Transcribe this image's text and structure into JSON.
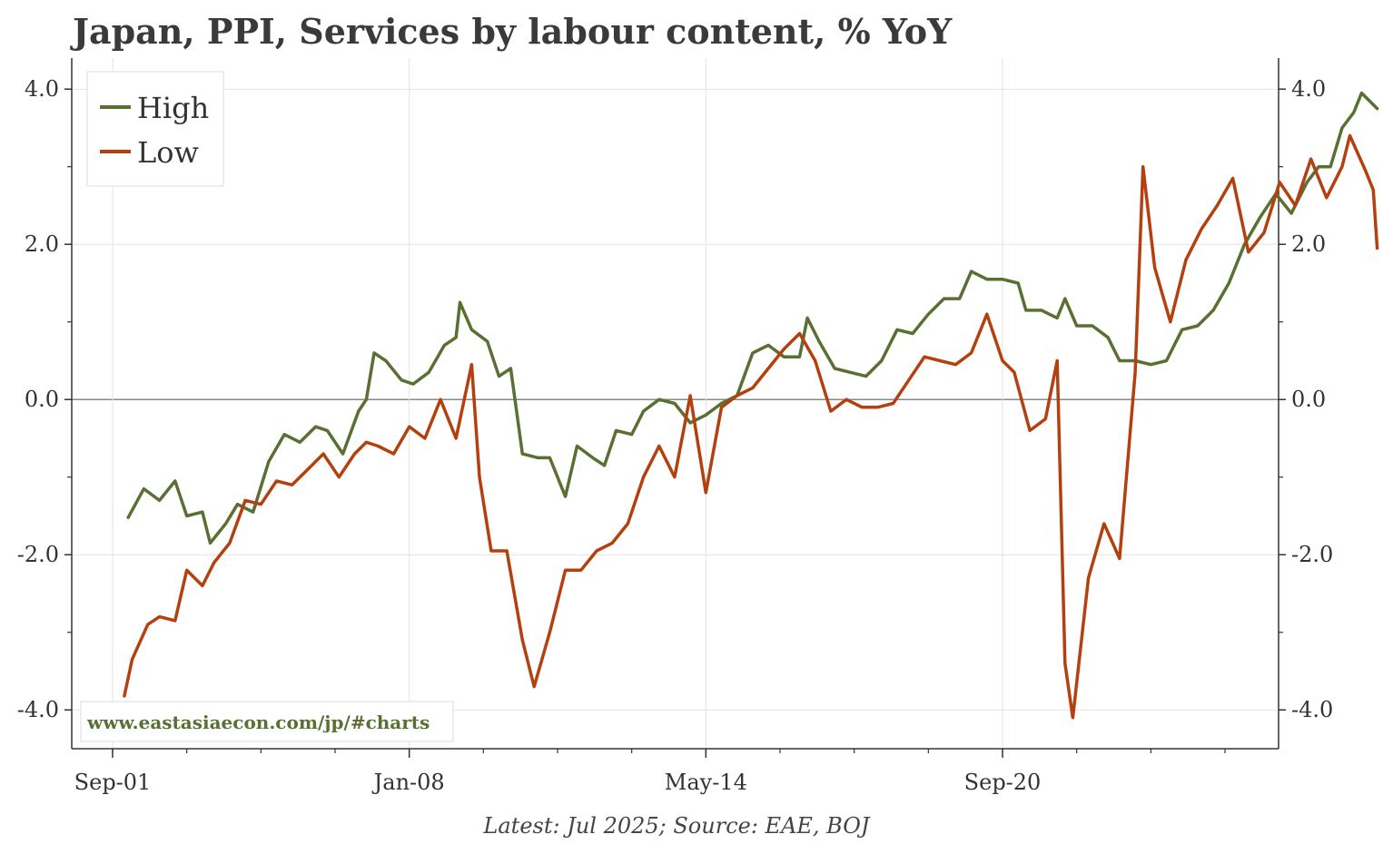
{
  "chart_data": {
    "type": "line",
    "title": "Japan, PPI, Services by labour content, % YoY",
    "footer": "Latest: Jul 2025; Source: EAE, BOJ",
    "watermark": "www.eastasiaecon.com/jp/#charts",
    "x_ticks": [
      "Sep-01",
      "Jan-08",
      "May-14",
      "Sep-20"
    ],
    "y_ticks": [
      "4.0",
      "2.0",
      "0.0",
      "-2.0",
      "-4.0"
    ],
    "ylim": [
      -4.5,
      4.4
    ],
    "legend_position": "top-left",
    "grid": true,
    "colors": {
      "High": "#5a6f32",
      "Low": "#b5400f",
      "watermark": "#5a6f32"
    },
    "series": [
      {
        "name": "High",
        "points": [
          [
            "2002-01",
            -1.52
          ],
          [
            "2002-05",
            -1.15
          ],
          [
            "2002-09",
            -1.3
          ],
          [
            "2003-01",
            -1.05
          ],
          [
            "2003-04",
            -1.5
          ],
          [
            "2003-08",
            -1.45
          ],
          [
            "2003-10",
            -1.85
          ],
          [
            "2004-02",
            -1.6
          ],
          [
            "2004-05",
            -1.35
          ],
          [
            "2004-09",
            -1.45
          ],
          [
            "2005-01",
            -0.8
          ],
          [
            "2005-05",
            -0.45
          ],
          [
            "2005-09",
            -0.55
          ],
          [
            "2006-01",
            -0.35
          ],
          [
            "2006-04",
            -0.4
          ],
          [
            "2006-08",
            -0.7
          ],
          [
            "2006-12",
            -0.15
          ],
          [
            "2007-02",
            0.0
          ],
          [
            "2007-04",
            0.6
          ],
          [
            "2007-07",
            0.5
          ],
          [
            "2007-11",
            0.25
          ],
          [
            "2008-02",
            0.2
          ],
          [
            "2008-06",
            0.35
          ],
          [
            "2008-10",
            0.7
          ],
          [
            "2009-01",
            0.8
          ],
          [
            "2009-02",
            1.25
          ],
          [
            "2009-05",
            0.9
          ],
          [
            "2009-09",
            0.75
          ],
          [
            "2009-12",
            0.3
          ],
          [
            "2010-03",
            0.4
          ],
          [
            "2010-06",
            -0.7
          ],
          [
            "2010-10",
            -0.75
          ],
          [
            "2011-01",
            -0.75
          ],
          [
            "2011-05",
            -1.25
          ],
          [
            "2011-08",
            -0.6
          ],
          [
            "2011-12",
            -0.75
          ],
          [
            "2012-03",
            -0.85
          ],
          [
            "2012-06",
            -0.4
          ],
          [
            "2012-10",
            -0.45
          ],
          [
            "2013-01",
            -0.15
          ],
          [
            "2013-05",
            0.0
          ],
          [
            "2013-09",
            -0.05
          ],
          [
            "2014-01",
            -0.3
          ],
          [
            "2014-05",
            -0.2
          ],
          [
            "2014-09",
            -0.05
          ],
          [
            "2015-01",
            0.05
          ],
          [
            "2015-05",
            0.6
          ],
          [
            "2015-09",
            0.7
          ],
          [
            "2016-01",
            0.55
          ],
          [
            "2016-05",
            0.55
          ],
          [
            "2016-07",
            1.05
          ],
          [
            "2016-10",
            0.75
          ],
          [
            "2017-02",
            0.4
          ],
          [
            "2017-06",
            0.35
          ],
          [
            "2017-10",
            0.3
          ],
          [
            "2018-02",
            0.5
          ],
          [
            "2018-06",
            0.9
          ],
          [
            "2018-10",
            0.85
          ],
          [
            "2019-02",
            1.1
          ],
          [
            "2019-06",
            1.3
          ],
          [
            "2019-10",
            1.3
          ],
          [
            "2020-01",
            1.65
          ],
          [
            "2020-05",
            1.55
          ],
          [
            "2020-09",
            1.55
          ],
          [
            "2021-01",
            1.5
          ],
          [
            "2021-03",
            1.15
          ],
          [
            "2021-07",
            1.15
          ],
          [
            "2021-11",
            1.05
          ],
          [
            "2022-01",
            1.3
          ],
          [
            "2022-04",
            0.95
          ],
          [
            "2022-08",
            0.95
          ],
          [
            "2022-12",
            0.8
          ],
          [
            "2023-03",
            0.5
          ],
          [
            "2023-07",
            0.5
          ],
          [
            "2023-11",
            0.45
          ],
          [
            "2024-03",
            0.5
          ],
          [
            "2024-07",
            0.9
          ],
          [
            "2024-11",
            0.95
          ],
          [
            "2025-03",
            1.15
          ],
          [
            "2025-07",
            1.5
          ],
          [
            "2025-11",
            2.0
          ],
          [
            "2026-03",
            2.35
          ],
          [
            "2026-07",
            2.65
          ],
          [
            "2026-11",
            2.4
          ],
          [
            "2027-03",
            2.8
          ],
          [
            "2027-06",
            3.0
          ],
          [
            "2027-09",
            3.0
          ],
          [
            "2027-12",
            3.5
          ],
          [
            "2028-03",
            3.7
          ],
          [
            "2028-05",
            3.95
          ],
          [
            "2028-09",
            3.75
          ]
        ]
      },
      {
        "name": "Low",
        "points": [
          [
            "2001-12",
            -3.82
          ],
          [
            "2002-02",
            -3.35
          ],
          [
            "2002-06",
            -2.9
          ],
          [
            "2002-09",
            -2.8
          ],
          [
            "2003-01",
            -2.85
          ],
          [
            "2003-04",
            -2.2
          ],
          [
            "2003-08",
            -2.4
          ],
          [
            "2003-11",
            -2.1
          ],
          [
            "2004-03",
            -1.85
          ],
          [
            "2004-07",
            -1.3
          ],
          [
            "2004-11",
            -1.35
          ],
          [
            "2005-03",
            -1.05
          ],
          [
            "2005-07",
            -1.1
          ],
          [
            "2005-11",
            -0.9
          ],
          [
            "2006-03",
            -0.7
          ],
          [
            "2006-07",
            -1.0
          ],
          [
            "2006-11",
            -0.7
          ],
          [
            "2007-02",
            -0.55
          ],
          [
            "2007-05",
            -0.6
          ],
          [
            "2007-09",
            -0.7
          ],
          [
            "2008-01",
            -0.35
          ],
          [
            "2008-05",
            -0.5
          ],
          [
            "2008-09",
            0.0
          ],
          [
            "2009-01",
            -0.5
          ],
          [
            "2009-05",
            0.45
          ],
          [
            "2009-07",
            -1.0
          ],
          [
            "2009-10",
            -1.95
          ],
          [
            "2010-02",
            -1.95
          ],
          [
            "2010-06",
            -3.1
          ],
          [
            "2010-09",
            -3.7
          ],
          [
            "2011-01",
            -3.0
          ],
          [
            "2011-05",
            -2.2
          ],
          [
            "2011-09",
            -2.2
          ],
          [
            "2012-01",
            -1.95
          ],
          [
            "2012-05",
            -1.85
          ],
          [
            "2012-09",
            -1.6
          ],
          [
            "2013-01",
            -1.0
          ],
          [
            "2013-05",
            -0.6
          ],
          [
            "2013-09",
            -1.0
          ],
          [
            "2014-01",
            0.05
          ],
          [
            "2014-05",
            -1.2
          ],
          [
            "2014-09",
            -0.1
          ],
          [
            "2015-01",
            0.05
          ],
          [
            "2015-05",
            0.15
          ],
          [
            "2015-09",
            0.4
          ],
          [
            "2016-01",
            0.65
          ],
          [
            "2016-05",
            0.85
          ],
          [
            "2016-09",
            0.5
          ],
          [
            "2017-01",
            -0.15
          ],
          [
            "2017-05",
            0.0
          ],
          [
            "2017-09",
            -0.1
          ],
          [
            "2018-01",
            -0.1
          ],
          [
            "2018-05",
            -0.05
          ],
          [
            "2018-09",
            0.25
          ],
          [
            "2019-01",
            0.55
          ],
          [
            "2019-05",
            0.5
          ],
          [
            "2019-09",
            0.45
          ],
          [
            "2020-01",
            0.6
          ],
          [
            "2020-05",
            1.1
          ],
          [
            "2020-09",
            0.5
          ],
          [
            "2020-12",
            0.35
          ],
          [
            "2021-04",
            -0.4
          ],
          [
            "2021-08",
            -0.25
          ],
          [
            "2021-11",
            0.5
          ],
          [
            "2022-01",
            -3.4
          ],
          [
            "2022-03",
            -4.1
          ],
          [
            "2022-07",
            -2.3
          ],
          [
            "2022-11",
            -1.6
          ],
          [
            "2023-03",
            -2.05
          ],
          [
            "2023-07",
            0.35
          ],
          [
            "2023-09",
            3.0
          ],
          [
            "2023-12",
            1.7
          ],
          [
            "2024-04",
            1.0
          ],
          [
            "2024-08",
            1.8
          ],
          [
            "2024-12",
            2.2
          ],
          [
            "2025-04",
            2.5
          ],
          [
            "2025-08",
            2.85
          ],
          [
            "2025-12",
            1.9
          ],
          [
            "2026-04",
            2.15
          ],
          [
            "2026-08",
            2.8
          ],
          [
            "2026-12",
            2.5
          ],
          [
            "2027-04",
            3.1
          ],
          [
            "2027-08",
            2.6
          ],
          [
            "2027-12",
            3.0
          ],
          [
            "2028-02",
            3.4
          ],
          [
            "2028-06",
            2.95
          ],
          [
            "2028-08",
            2.7
          ],
          [
            "2028-09",
            1.95
          ]
        ]
      }
    ]
  }
}
